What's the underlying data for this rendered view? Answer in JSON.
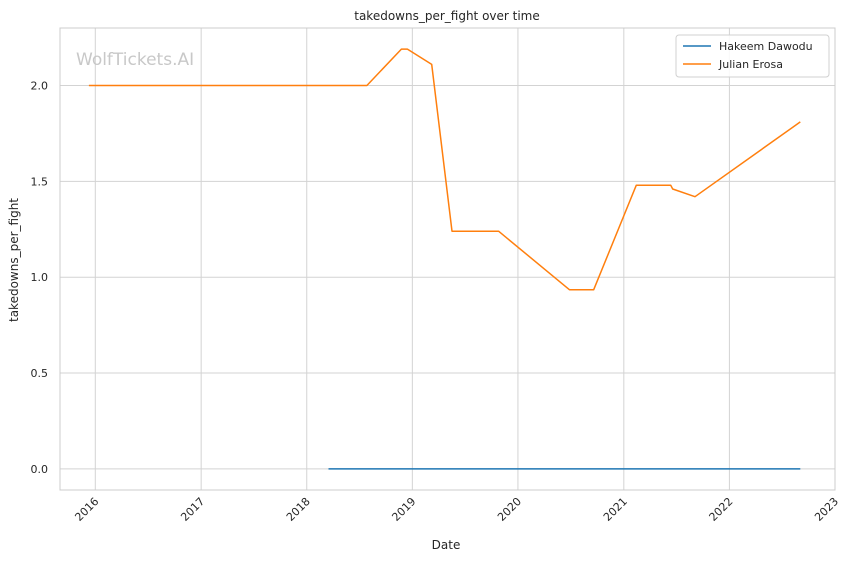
{
  "chart_data": {
    "type": "line",
    "title": "takedowns_per_fight over time",
    "xlabel": "Date",
    "ylabel": "takedowns_per_fight",
    "watermark": "WolfTickets.AI",
    "x_ticks": [
      "2016",
      "2017",
      "2018",
      "2019",
      "2020",
      "2021",
      "2022",
      "2023"
    ],
    "y_ticks": [
      "0.0",
      "0.5",
      "1.0",
      "1.5",
      "2.0"
    ],
    "xlim": [
      "2015-09-01",
      "2023-01-01"
    ],
    "ylim": [
      -0.11,
      2.3
    ],
    "grid": true,
    "legend_position": "top-right",
    "series": [
      {
        "name": "Hakeem Dawodu",
        "color": "#1f77b4",
        "points": [
          [
            "2018-03-17",
            0.0
          ],
          [
            "2022-09-03",
            0.0
          ]
        ]
      },
      {
        "name": "Julian Erosa",
        "color": "#ff7f0e",
        "points": [
          [
            "2015-12-10",
            2.0
          ],
          [
            "2018-07-28",
            2.0
          ],
          [
            "2018-11-24",
            2.19
          ],
          [
            "2018-12-15",
            2.19
          ],
          [
            "2019-03-09",
            2.11
          ],
          [
            "2019-05-18",
            1.24
          ],
          [
            "2019-10-26",
            1.24
          ],
          [
            "2020-06-27",
            0.935
          ],
          [
            "2020-09-19",
            0.935
          ],
          [
            "2021-02-13",
            1.48
          ],
          [
            "2021-06-12",
            1.48
          ],
          [
            "2021-06-19",
            1.46
          ],
          [
            "2021-09-04",
            1.42
          ],
          [
            "2022-09-03",
            1.81
          ]
        ]
      }
    ]
  }
}
